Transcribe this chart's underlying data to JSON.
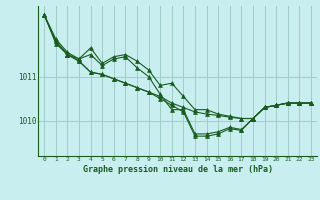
{
  "background_color": "#c8eef0",
  "grid_color": "#a0ccc8",
  "line_color": "#1a5c20",
  "title": "Graphe pression niveau de la mer (hPa)",
  "xlabel_ticks": [
    0,
    1,
    2,
    3,
    4,
    5,
    6,
    7,
    8,
    9,
    10,
    11,
    12,
    13,
    14,
    15,
    16,
    17,
    18,
    19,
    20,
    21,
    22,
    23
  ],
  "ylim": [
    1009.2,
    1012.6
  ],
  "yticks": [
    1010,
    1011
  ],
  "curve1": [
    1012.4,
    1011.85,
    1011.55,
    1011.4,
    1011.65,
    1011.3,
    1011.45,
    1011.5,
    1011.35,
    1011.15,
    1010.8,
    1010.85,
    1010.55,
    1010.25,
    1010.25,
    1010.15,
    1010.1,
    1010.05,
    1010.05,
    1010.3,
    1010.35,
    1010.4,
    1010.4,
    1010.4
  ],
  "curve2": [
    1012.4,
    1011.75,
    1011.5,
    1011.4,
    1011.5,
    1011.25,
    1011.4,
    1011.45,
    1011.2,
    1011.0,
    1010.6,
    1010.25,
    1010.25,
    1009.7,
    1009.7,
    1009.75,
    1009.85,
    1009.8,
    1010.05,
    1010.3,
    1010.35,
    1010.4,
    1010.4,
    1010.4
  ],
  "curve3": [
    1012.4,
    1011.8,
    1011.5,
    1011.35,
    1011.1,
    1011.05,
    1010.95,
    1010.85,
    1010.75,
    1010.65,
    1010.55,
    1010.4,
    1010.3,
    1010.2,
    1010.15,
    1010.12,
    1010.08,
    1010.05,
    1010.05,
    1010.3,
    1010.35,
    1010.4,
    1010.4,
    1010.4
  ],
  "curve4": [
    1012.4,
    1011.8,
    1011.5,
    1011.35,
    1011.1,
    1011.05,
    1010.95,
    1010.85,
    1010.75,
    1010.65,
    1010.5,
    1010.35,
    1010.2,
    1009.65,
    1009.65,
    1009.7,
    1009.82,
    1009.78,
    1010.05,
    1010.3,
    1010.35,
    1010.4,
    1010.4,
    1010.4
  ]
}
